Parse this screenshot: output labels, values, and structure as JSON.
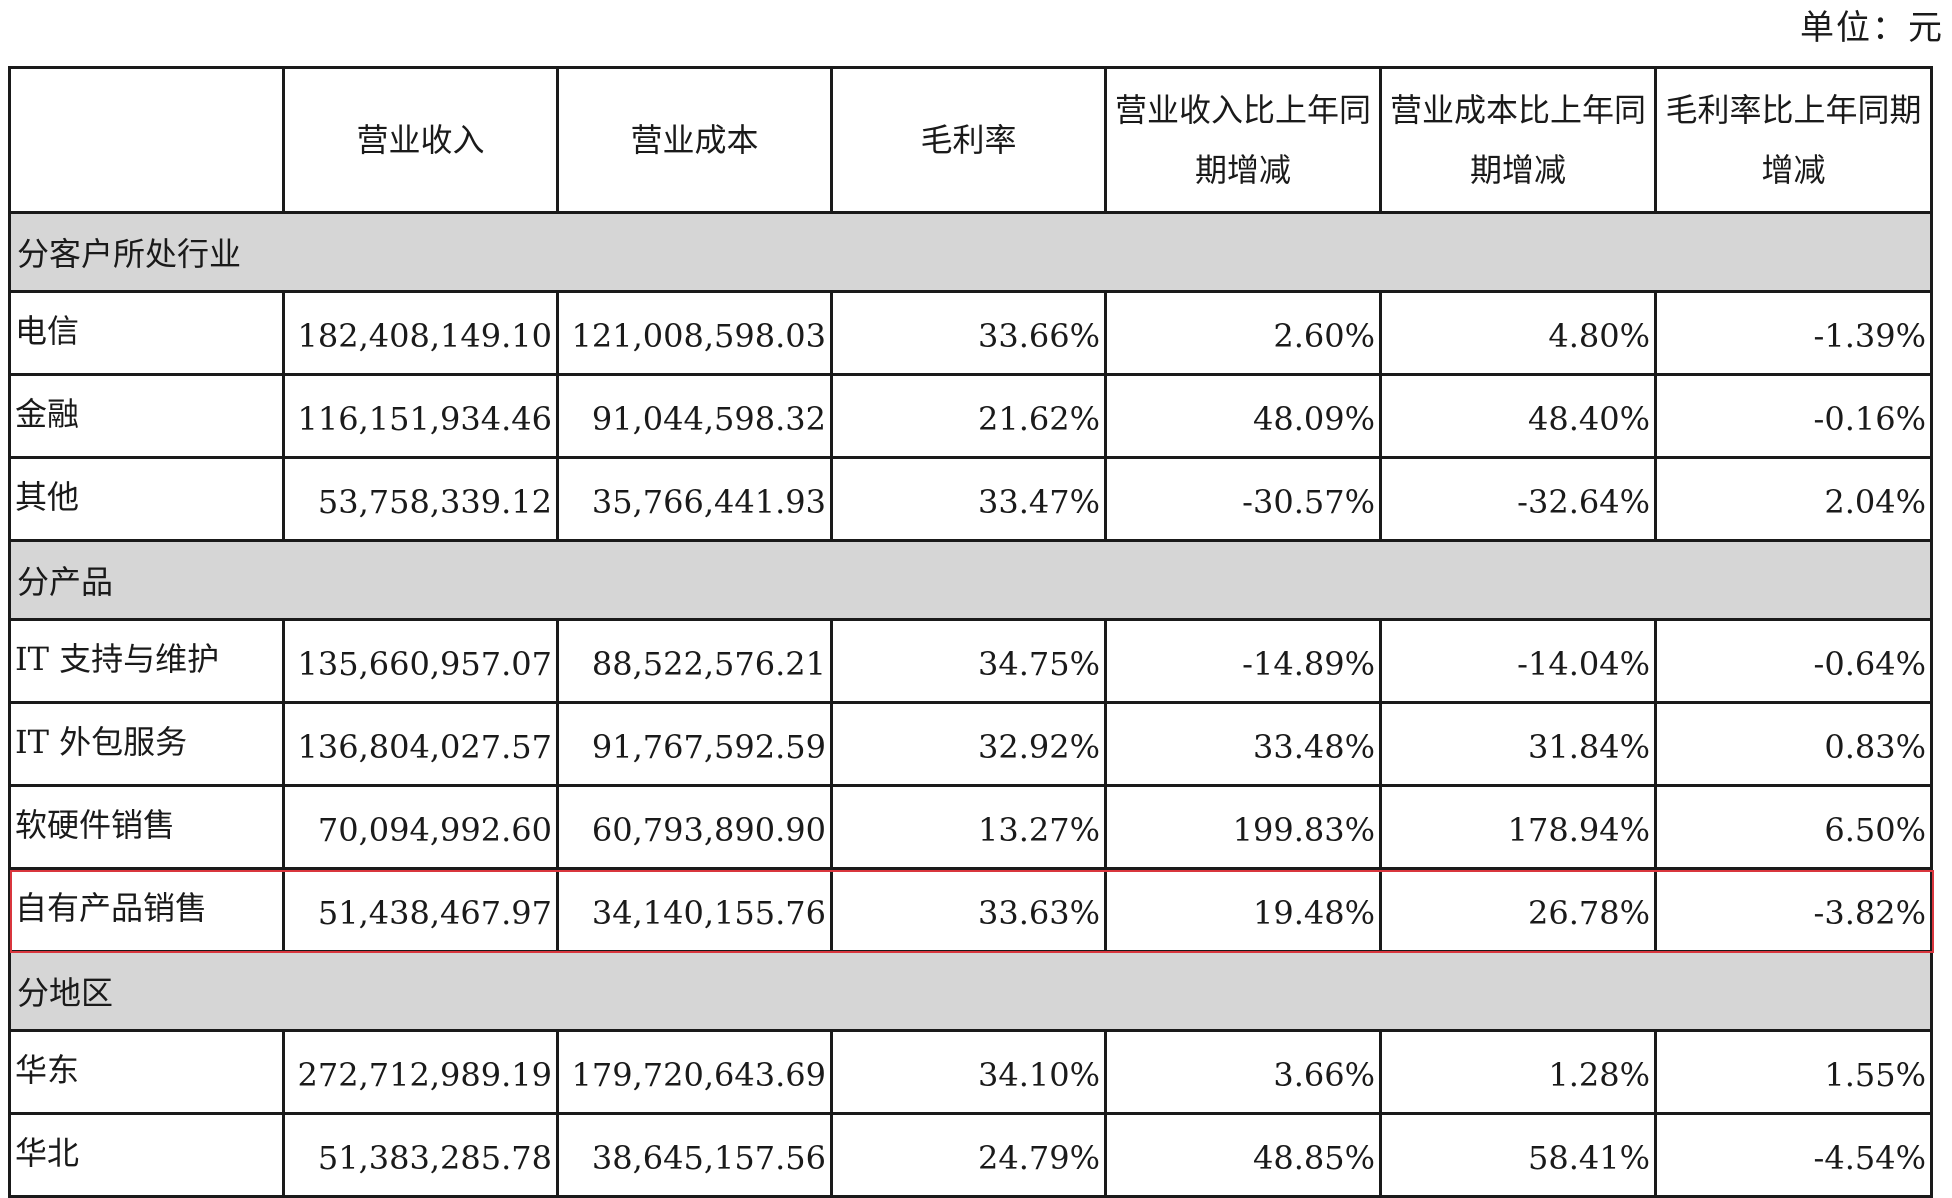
{
  "unit": "单位：元",
  "headers": [
    "",
    "营业收入",
    "营业成本",
    "毛利率",
    "营业收入比上年同期增减",
    "营业成本比上年同期增减",
    "毛利率比上年同期增减"
  ],
  "sections": [
    {
      "title": "分客户所处行业",
      "rows": [
        {
          "name": "电信",
          "revenue": "182,408,149.10",
          "cost": "121,008,598.03",
          "margin": "33.66%",
          "rev_yoy": "2.60%",
          "cost_yoy": "4.80%",
          "margin_yoy": "-1.39%"
        },
        {
          "name": "金融",
          "revenue": "116,151,934.46",
          "cost": "91,044,598.32",
          "margin": "21.62%",
          "rev_yoy": "48.09%",
          "cost_yoy": "48.40%",
          "margin_yoy": "-0.16%"
        },
        {
          "name": "其他",
          "revenue": "53,758,339.12",
          "cost": "35,766,441.93",
          "margin": "33.47%",
          "rev_yoy": "-30.57%",
          "cost_yoy": "-32.64%",
          "margin_yoy": "2.04%"
        }
      ]
    },
    {
      "title": "分产品",
      "rows": [
        {
          "name": "IT 支持与维护",
          "revenue": "135,660,957.07",
          "cost": "88,522,576.21",
          "margin": "34.75%",
          "rev_yoy": "-14.89%",
          "cost_yoy": "-14.04%",
          "margin_yoy": "-0.64%"
        },
        {
          "name": "IT 外包服务",
          "revenue": "136,804,027.57",
          "cost": "91,767,592.59",
          "margin": "32.92%",
          "rev_yoy": "33.48%",
          "cost_yoy": "31.84%",
          "margin_yoy": "0.83%"
        },
        {
          "name": "软硬件销售",
          "revenue": "70,094,992.60",
          "cost": "60,793,890.90",
          "margin": "13.27%",
          "rev_yoy": "199.83%",
          "cost_yoy": "178.94%",
          "margin_yoy": "6.50%"
        },
        {
          "name": "自有产品销售",
          "revenue": "51,438,467.97",
          "cost": "34,140,155.76",
          "margin": "33.63%",
          "rev_yoy": "19.48%",
          "cost_yoy": "26.78%",
          "margin_yoy": "-3.82%",
          "highlighted": true
        }
      ]
    },
    {
      "title": "分地区",
      "rows": [
        {
          "name": "华东",
          "revenue": "272,712,989.19",
          "cost": "179,720,643.69",
          "margin": "34.10%",
          "rev_yoy": "3.66%",
          "cost_yoy": "1.28%",
          "margin_yoy": "1.55%"
        },
        {
          "name": "华北",
          "revenue": "51,383,285.78",
          "cost": "38,645,157.56",
          "margin": "24.79%",
          "rev_yoy": "48.85%",
          "cost_yoy": "58.41%",
          "margin_yoy": "-4.54%"
        }
      ]
    }
  ],
  "colors": {
    "section_bg": "#d6d6d6",
    "border": "#1a1a1a",
    "highlight_border": "#d9363e"
  }
}
